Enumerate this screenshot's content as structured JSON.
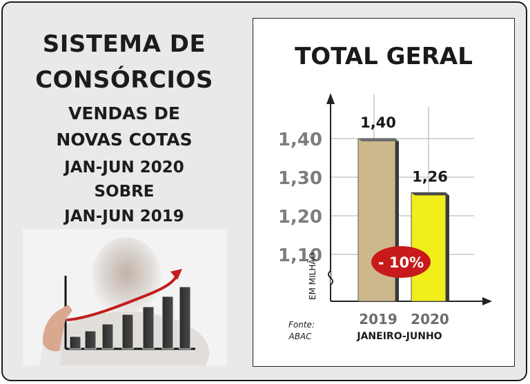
{
  "left": {
    "line1": "SISTEMA DE",
    "line2": "CONSÓRCIOS",
    "line3": "VENDAS DE",
    "line4": "NOVAS COTAS",
    "line5": "JAN-JUN 2020",
    "line6": "SOBRE",
    "line7": "JAN-JUN 2019"
  },
  "chart_data": {
    "type": "bar",
    "title": "TOTAL GERAL",
    "categories": [
      "2019",
      "2020"
    ],
    "values": [
      1.4,
      1.26
    ],
    "value_labels": [
      "1,40",
      "1,26"
    ],
    "ylabel": "EM MILHÃO",
    "xlabel": "JANEIRO-JUNHO",
    "yticks": [
      1.1,
      1.2,
      1.3,
      1.4
    ],
    "ytick_labels": [
      "1,10",
      "1,20",
      "1,30",
      "1,40"
    ],
    "ylim": [
      1.0,
      1.45
    ],
    "axis_break": true,
    "grid": true,
    "change_badge": "- 10%",
    "source_line1": "Fonte:",
    "source_line2": "ABAC",
    "colors": {
      "bar_2019": "#cdb88e",
      "bar_2020": "#f2ee1c",
      "badge": "#c81a1a",
      "axis": "#222222",
      "grid": "#bdbdbd"
    }
  }
}
